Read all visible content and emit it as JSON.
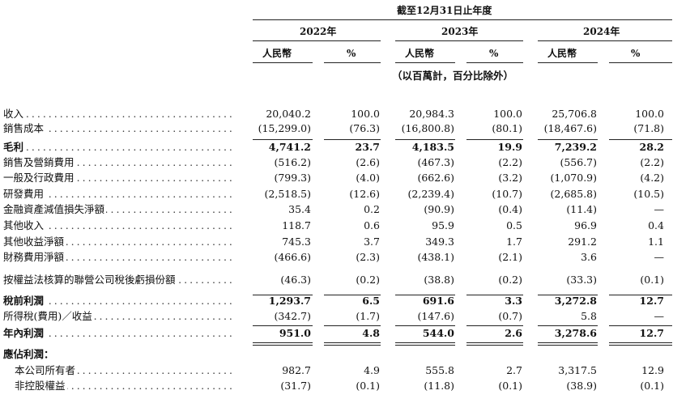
{
  "header": {
    "period_title": "截至12月31日止年度",
    "years": [
      "2022年",
      "2023年",
      "2024年"
    ],
    "col_rmb": "人民幣",
    "col_pct": "%",
    "unit_note": "（以百萬計，百分比除外）"
  },
  "rows": [
    {
      "label": "收入",
      "bold": false,
      "indent": false,
      "v": [
        "20,040.2",
        "100.0",
        "20,984.3",
        "100.0",
        "25,706.8",
        "100.0"
      ]
    },
    {
      "label": "銷售成本",
      "bold": false,
      "indent": false,
      "v": [
        "(15,299.0)",
        "(76.3)",
        "(16,800.8)",
        "(80.1)",
        "(18,467.6)",
        "(71.8)"
      ]
    },
    {
      "label": "毛利",
      "bold": true,
      "indent": false,
      "v": [
        "4,741.2",
        "23.7",
        "4,183.5",
        "19.9",
        "7,239.2",
        "28.2"
      ]
    },
    {
      "label": "銷售及營銷費用",
      "bold": false,
      "indent": false,
      "v": [
        "(516.2)",
        "(2.6)",
        "(467.3)",
        "(2.2)",
        "(556.7)",
        "(2.2)"
      ]
    },
    {
      "label": "一般及行政費用",
      "bold": false,
      "indent": false,
      "v": [
        "(799.3)",
        "(4.0)",
        "(662.6)",
        "(3.2)",
        "(1,070.9)",
        "(4.2)"
      ]
    },
    {
      "label": "研發費用",
      "bold": false,
      "indent": false,
      "v": [
        "(2,518.5)",
        "(12.6)",
        "(2,239.4)",
        "(10.7)",
        "(2,685.8)",
        "(10.5)"
      ]
    },
    {
      "label": "金融資產減值損失淨額",
      "bold": false,
      "indent": false,
      "v": [
        "35.4",
        "0.2",
        "(90.9)",
        "(0.4)",
        "(11.4)",
        "—"
      ]
    },
    {
      "label": "其他收入",
      "bold": false,
      "indent": false,
      "v": [
        "118.7",
        "0.6",
        "95.9",
        "0.5",
        "96.9",
        "0.4"
      ]
    },
    {
      "label": "其他收益淨額",
      "bold": false,
      "indent": false,
      "v": [
        "745.3",
        "3.7",
        "349.3",
        "1.7",
        "291.2",
        "1.1"
      ]
    },
    {
      "label": "財務費用淨額",
      "bold": false,
      "indent": false,
      "v": [
        "(466.6)",
        "(2.3)",
        "(438.1)",
        "(2.1)",
        "3.6",
        "—"
      ]
    },
    {
      "label": "按權益法核算的聯營公司稅後虧損份額",
      "bold": false,
      "indent": false,
      "v": [
        "(46.3)",
        "(0.2)",
        "(38.8)",
        "(0.2)",
        "(33.3)",
        "(0.1)"
      ]
    },
    {
      "label": "稅前利潤",
      "bold": true,
      "indent": false,
      "v": [
        "1,293.7",
        "6.5",
        "691.6",
        "3.3",
        "3,272.8",
        "12.7"
      ]
    },
    {
      "label": "所得稅(費用)／收益",
      "bold": false,
      "indent": false,
      "v": [
        "(342.7)",
        "(1.7)",
        "(147.6)",
        "(0.7)",
        "5.8",
        "—"
      ]
    },
    {
      "label": "年內利潤",
      "bold": true,
      "indent": false,
      "v": [
        "951.0",
        "4.8",
        "544.0",
        "2.6",
        "3,278.6",
        "12.7"
      ]
    },
    {
      "label": "應佔利潤：",
      "bold": true,
      "indent": false,
      "v": [
        "",
        "",
        "",
        "",
        "",
        ""
      ]
    },
    {
      "label": "本公司所有者",
      "bold": false,
      "indent": true,
      "v": [
        "982.7",
        "4.9",
        "555.8",
        "2.7",
        "3,317.5",
        "12.9"
      ]
    },
    {
      "label": "非控股權益",
      "bold": false,
      "indent": true,
      "v": [
        "(31.7)",
        "(0.1)",
        "(11.8)",
        "(0.1)",
        "(38.9)",
        "(0.1)"
      ]
    }
  ]
}
